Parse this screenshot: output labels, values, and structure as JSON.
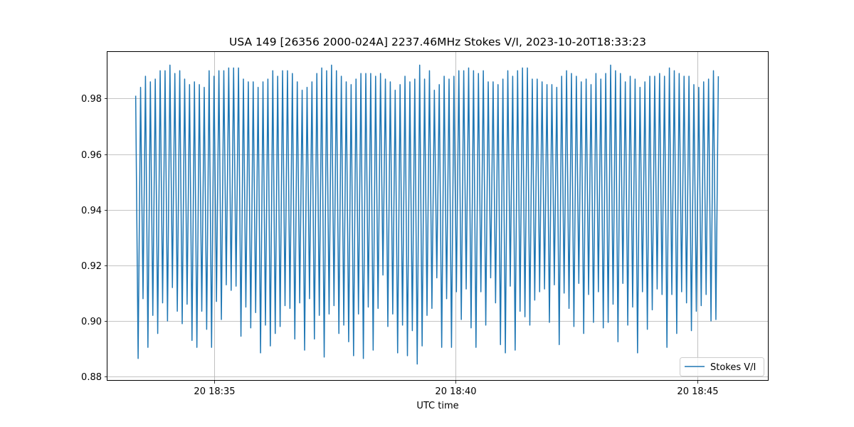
{
  "chart_data": {
    "type": "line",
    "title": "USA 149 [26356 2000-024A] 2237.46MHz Stokes V/I, 2023-10-20T18:33:23",
    "xlabel": "UTC time",
    "ylabel": "",
    "x_range": [
      "2023-10-20T18:33:23",
      "2023-10-20T18:45:53"
    ],
    "xlim": [
      "2023-10-20T18:32:48",
      "2023-10-20T18:46:28"
    ],
    "ylim": [
      0.8785,
      0.997
    ],
    "x_ticks": [
      {
        "time": "2023-10-20T18:35:00",
        "label": "20 18:35"
      },
      {
        "time": "2023-10-20T18:40:00",
        "label": "20 18:40"
      },
      {
        "time": "2023-10-20T18:45:00",
        "label": "20 18:45"
      }
    ],
    "y_ticks": [
      {
        "value": 0.88,
        "label": "0.88"
      },
      {
        "value": 0.9,
        "label": "0.90"
      },
      {
        "value": 0.92,
        "label": "0.92"
      },
      {
        "value": 0.94,
        "label": "0.94"
      },
      {
        "value": 0.96,
        "label": "0.96"
      },
      {
        "value": 0.98,
        "label": "0.98"
      }
    ],
    "grid": true,
    "legend_position": "bottom-right",
    "series": [
      {
        "name": "Stokes V/I",
        "color": "#1f77b4",
        "start_value": 0.981,
        "end_value": 0.9005,
        "peaks": [
          0.984,
          0.988,
          0.986,
          0.987,
          0.99,
          0.99,
          0.992,
          0.989,
          0.99,
          0.987,
          0.985,
          0.986,
          0.985,
          0.984,
          0.99,
          0.988,
          0.99,
          0.99,
          0.991,
          0.991,
          0.991,
          0.987,
          0.986,
          0.986,
          0.984,
          0.986,
          0.987,
          0.99,
          0.988,
          0.99,
          0.99,
          0.989,
          0.986,
          0.983,
          0.984,
          0.986,
          0.989,
          0.991,
          0.99,
          0.992,
          0.99,
          0.988,
          0.986,
          0.985,
          0.987,
          0.989,
          0.989,
          0.989,
          0.988,
          0.989,
          0.987,
          0.986,
          0.983,
          0.985,
          0.988,
          0.986,
          0.987,
          0.992,
          0.987,
          0.99,
          0.983,
          0.985,
          0.988,
          0.987,
          0.988,
          0.99,
          0.99,
          0.991,
          0.99,
          0.989,
          0.99,
          0.986,
          0.986,
          0.985,
          0.987,
          0.99,
          0.988,
          0.99,
          0.991,
          0.991,
          0.987,
          0.987,
          0.986,
          0.985,
          0.985,
          0.984,
          0.988,
          0.99,
          0.989,
          0.988,
          0.986,
          0.987,
          0.985,
          0.989,
          0.987,
          0.989,
          0.992,
          0.99,
          0.989,
          0.986,
          0.988,
          0.987,
          0.984,
          0.986,
          0.988,
          0.988,
          0.989,
          0.988,
          0.991,
          0.99,
          0.989,
          0.988,
          0.988,
          0.985,
          0.984,
          0.986,
          0.987,
          0.99,
          0.988,
          0.991,
          0.99,
          0.99,
          0.99
        ],
        "troughs": [
          0.8865,
          0.908,
          0.8905,
          0.902,
          0.8955,
          0.9065,
          0.9,
          0.912,
          0.9035,
          0.899,
          0.906,
          0.893,
          0.8905,
          0.9035,
          0.897,
          0.8905,
          0.907,
          0.9005,
          0.913,
          0.911,
          0.9125,
          0.8945,
          0.905,
          0.8975,
          0.903,
          0.8885,
          0.8985,
          0.891,
          0.8955,
          0.898,
          0.9055,
          0.9045,
          0.8935,
          0.9065,
          0.8895,
          0.908,
          0.8935,
          0.902,
          0.887,
          0.9025,
          0.9055,
          0.8955,
          0.8985,
          0.8925,
          0.8875,
          0.9025,
          0.8865,
          0.905,
          0.8895,
          0.9045,
          0.9165,
          0.898,
          0.9025,
          0.8885,
          0.8985,
          0.8875,
          0.8965,
          0.8845,
          0.891,
          0.902,
          0.9045,
          0.9155,
          0.8905,
          0.908,
          0.8905,
          0.9105,
          0.9005,
          0.9115,
          0.8975,
          0.8905,
          0.9105,
          0.8985,
          0.9155,
          0.9065,
          0.8915,
          0.8885,
          0.9125,
          0.8895,
          0.9035,
          0.9015,
          0.8985,
          0.9075,
          0.9105,
          0.9115,
          0.8995,
          0.913,
          0.8915,
          0.91,
          0.9045,
          0.898,
          0.9135,
          0.8955,
          0.9095,
          0.8995,
          0.9105,
          0.8975,
          0.8995,
          0.906,
          0.8925,
          0.9135,
          0.8985,
          0.905,
          0.8885,
          0.9105,
          0.897,
          0.904,
          0.9115,
          0.9095,
          0.8905,
          0.9095,
          0.8955,
          0.9105,
          0.9065,
          0.8965,
          0.9035,
          0.9055,
          0.9095,
          0.9,
          0.9005
        ]
      }
    ]
  }
}
